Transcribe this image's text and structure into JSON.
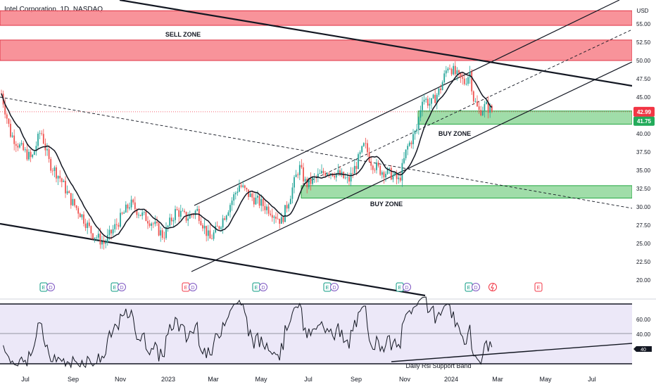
{
  "header": {
    "title": "Intel Corporation, 1D, NASDAQ"
  },
  "colors": {
    "sell_zone": "#f7878f",
    "sell_zone_border": "#e03545",
    "buy_zone": "#96d9a0",
    "buy_zone_border": "#27a844",
    "price_badge": "#f23645",
    "price_badge2": "#22ab5a",
    "rsi_band": "#ece8f8",
    "candle_up": "#26a69a",
    "candle_down": "#ef5350"
  },
  "chart_data": [
    {
      "type": "candlestick",
      "currency": "USD",
      "y_ticks": [
        "55.00",
        "52.50",
        "50.00",
        "47.50",
        "45.00",
        "42.50",
        "40.00",
        "37.50",
        "35.00",
        "32.50",
        "30.00",
        "27.50",
        "25.00",
        "22.50",
        "20.00"
      ],
      "ylim": [
        17.8,
        57.0
      ],
      "last_price": "42.99",
      "secondary_price": "41.75",
      "zones": [
        {
          "label": "SELL ZONE",
          "y_low": 54.8,
          "y_high": 56.8
        },
        {
          "label": "",
          "y_low": 50.0,
          "y_high": 52.8
        },
        {
          "label": "BUY ZONE",
          "y_low": 41.3,
          "y_high": 43.1
        },
        {
          "label": "BUY ZONE",
          "y_low": 31.2,
          "y_high": 32.9
        }
      ],
      "event_markers": [
        "E",
        "D",
        "E",
        "D",
        "E",
        "D",
        "E",
        "D",
        "E",
        "D",
        "E",
        "D",
        "E",
        "D",
        "E"
      ],
      "description": "Daily Intel candles from mid-2022 to Feb 2024 with moving average, rising channel and descending trendlines"
    },
    {
      "type": "line",
      "y_ticks": [
        "60.00",
        "40.00"
      ],
      "last_value": "40",
      "annotation": "Daily Rsi Support Band",
      "x_ticks": [
        "Jul",
        "Sep",
        "Nov",
        "2023",
        "Mar",
        "May",
        "Jul",
        "Sep",
        "Nov",
        "2024",
        "Mar",
        "May",
        "Jul"
      ]
    }
  ]
}
